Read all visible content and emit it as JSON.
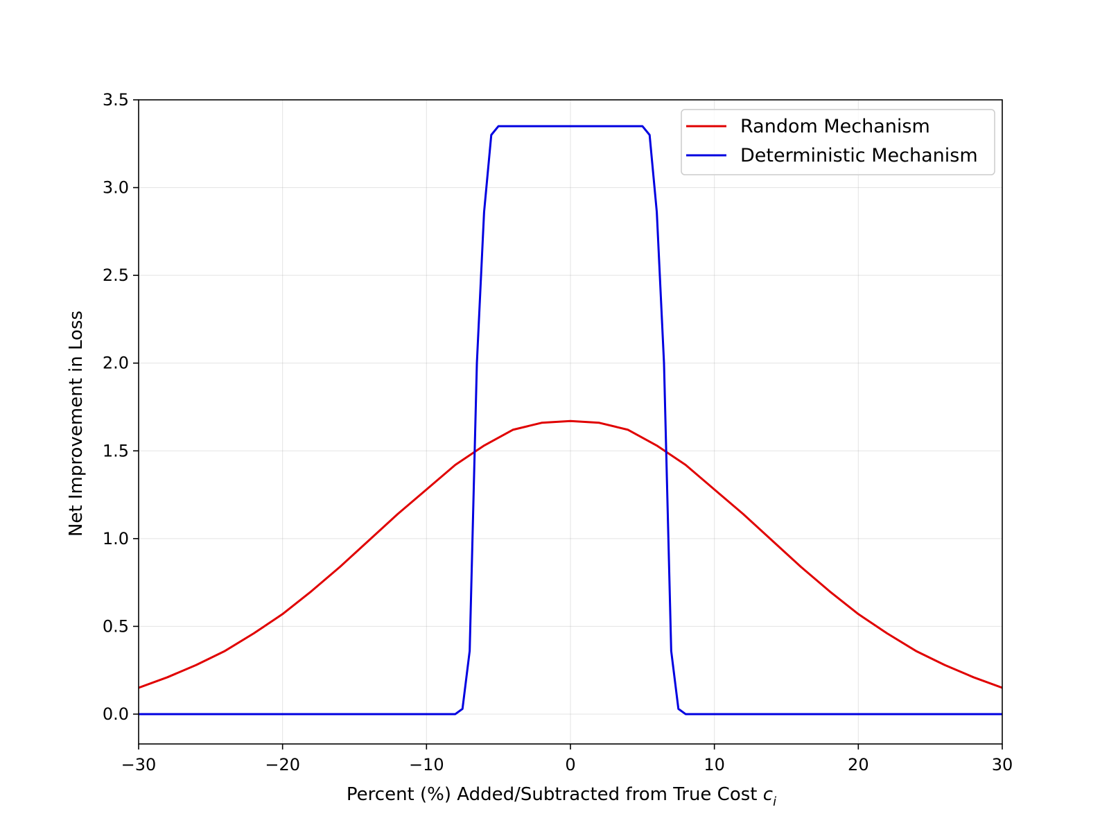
{
  "chart_data": {
    "type": "line",
    "title": "",
    "xlabel": "Percent (%) Added/Subtracted from True Cost ",
    "xlabel_math": "c",
    "xlabel_math_sub": "i",
    "ylabel": "Net Improvement in Loss",
    "xlim": [
      -30,
      30
    ],
    "ylim": [
      -0.17,
      3.5
    ],
    "x_ticks": [
      -30,
      -20,
      -10,
      0,
      10,
      20,
      30
    ],
    "x_tick_labels": [
      "−30",
      "−20",
      "−10",
      "0",
      "10",
      "20",
      "30"
    ],
    "y_ticks": [
      0.0,
      0.5,
      1.0,
      1.5,
      2.0,
      2.5,
      3.0,
      3.5
    ],
    "y_tick_labels": [
      "0.0",
      "0.5",
      "1.0",
      "1.5",
      "2.0",
      "2.5",
      "3.0",
      "3.5"
    ],
    "grid": true,
    "legend_position": "top-right",
    "series": [
      {
        "name": "Random Mechanism",
        "color": "#e00000",
        "x": [
          -30,
          -28,
          -26,
          -24,
          -22,
          -20,
          -18,
          -16,
          -14,
          -12,
          -10,
          -8,
          -6,
          -4,
          -2,
          0,
          2,
          4,
          6,
          8,
          10,
          12,
          14,
          16,
          18,
          20,
          22,
          24,
          26,
          28,
          30
        ],
        "y": [
          0.15,
          0.21,
          0.28,
          0.36,
          0.46,
          0.57,
          0.7,
          0.84,
          0.99,
          1.14,
          1.28,
          1.42,
          1.53,
          1.62,
          1.66,
          1.67,
          1.66,
          1.62,
          1.53,
          1.42,
          1.28,
          1.14,
          0.99,
          0.84,
          0.7,
          0.57,
          0.46,
          0.36,
          0.28,
          0.21,
          0.15
        ]
      },
      {
        "name": "Deterministic Mechanism",
        "color": "#0000e0",
        "x": [
          -30,
          -8.0,
          -7.5,
          -7.0,
          -6.5,
          -6.0,
          -5.5,
          -5.0,
          5.0,
          5.5,
          6.0,
          6.5,
          7.0,
          7.5,
          8.0,
          30
        ],
        "y": [
          0.0,
          0.0,
          0.03,
          0.36,
          2.0,
          2.86,
          3.3,
          3.35,
          3.35,
          3.3,
          2.86,
          2.0,
          0.36,
          0.03,
          0.0,
          0.0
        ]
      }
    ]
  }
}
